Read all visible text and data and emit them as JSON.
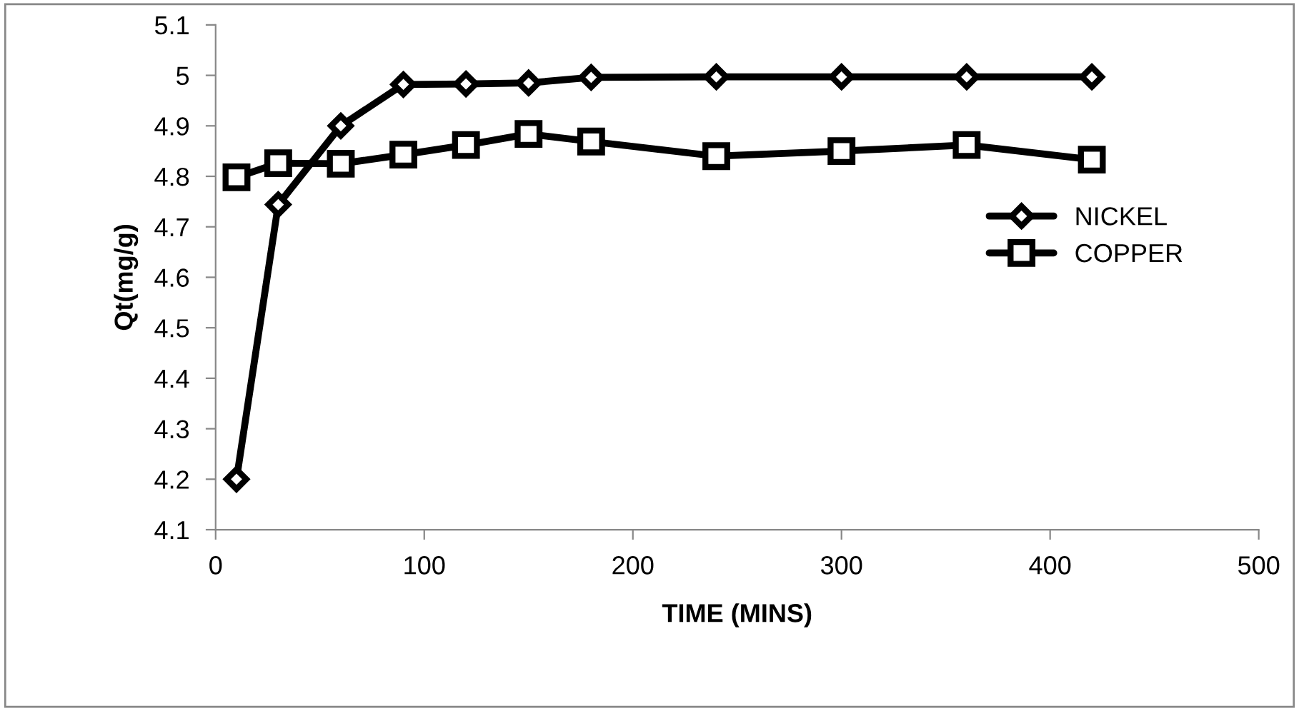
{
  "chart_data": {
    "type": "line",
    "xlabel": "TIME (MINS)",
    "ylabel": "Qt(mg/g)",
    "x": [
      10,
      30,
      60,
      90,
      120,
      150,
      180,
      240,
      300,
      360,
      420
    ],
    "series": [
      {
        "name": "NICKEL",
        "color": "#000000",
        "marker": "diamond",
        "values": [
          4.2,
          4.744,
          4.9,
          4.982,
          4.983,
          4.985,
          4.996,
          4.997,
          4.997,
          4.997,
          4.997
        ]
      },
      {
        "name": "COPPER",
        "color": "#000000",
        "marker": "square",
        "values": [
          4.798,
          4.826,
          4.825,
          4.843,
          4.862,
          4.884,
          4.869,
          4.84,
          4.85,
          4.862,
          4.833
        ]
      }
    ],
    "xlim": [
      0,
      500
    ],
    "xticks": [
      0,
      100,
      200,
      300,
      400,
      500
    ],
    "ylim": [
      4.1,
      5.1
    ],
    "yticks": [
      4.1,
      4.2,
      4.3,
      4.4,
      4.5,
      4.6,
      4.7,
      4.8,
      4.9,
      5,
      5.1
    ],
    "grid": false,
    "legend": "right",
    "line_style": "solid"
  }
}
